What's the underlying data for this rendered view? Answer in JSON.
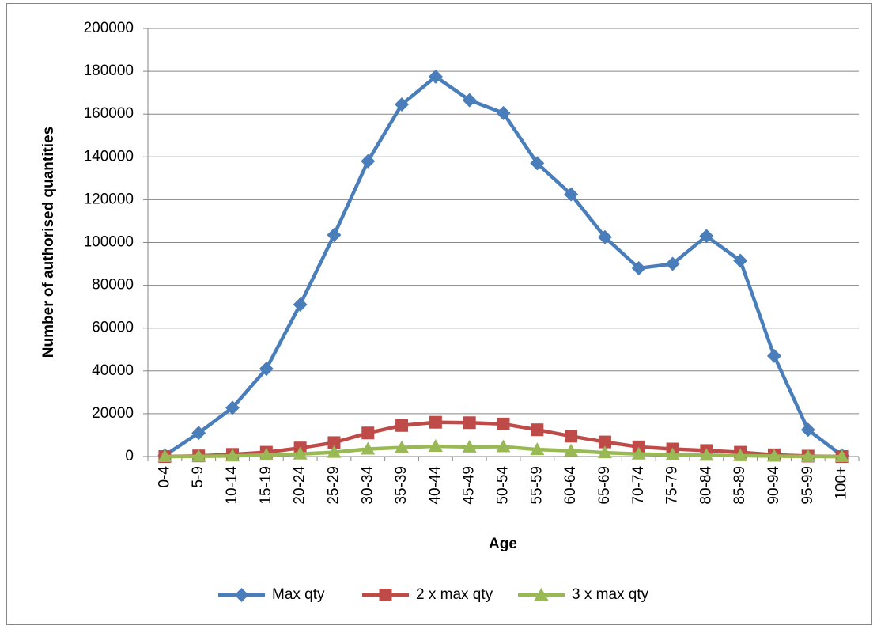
{
  "chart_data": {
    "type": "line",
    "x_label": "Age",
    "y_label": "Number of authorised quantities",
    "categories": [
      "0-4",
      "5-9",
      "10-14",
      "15-19",
      "20-24",
      "25-29",
      "30-34",
      "35-39",
      "40-44",
      "45-49",
      "50-54",
      "55-59",
      "60-64",
      "65-69",
      "70-74",
      "75-79",
      "80-84",
      "85-89",
      "90-94",
      "95-99",
      "100+"
    ],
    "series": [
      {
        "name": "Max qty",
        "color": "#4a7ebb",
        "marker": "diamond",
        "values": [
          500,
          11000,
          22800,
          41000,
          71000,
          103500,
          138000,
          164500,
          177500,
          166500,
          160500,
          137000,
          122500,
          102500,
          88000,
          90000,
          103000,
          91500,
          47000,
          12500,
          500
        ]
      },
      {
        "name": "2 x max qty",
        "color": "#be4b48",
        "marker": "square",
        "values": [
          0,
          300,
          1000,
          2000,
          4000,
          6500,
          11000,
          14500,
          16000,
          15800,
          15200,
          12500,
          9500,
          6800,
          4500,
          3500,
          2800,
          2000,
          800,
          200,
          0
        ]
      },
      {
        "name": "3 x max qty",
        "color": "#98b954",
        "marker": "triangle",
        "values": [
          0,
          100,
          300,
          700,
          1200,
          2000,
          3500,
          4200,
          4800,
          4500,
          4600,
          3300,
          2700,
          1800,
          1200,
          800,
          600,
          400,
          200,
          50,
          0
        ]
      }
    ],
    "ylim": [
      0,
      200000
    ],
    "yticks": [
      0,
      20000,
      40000,
      60000,
      80000,
      100000,
      120000,
      140000,
      160000,
      180000,
      200000
    ],
    "grid": true,
    "legend": "bottom"
  }
}
